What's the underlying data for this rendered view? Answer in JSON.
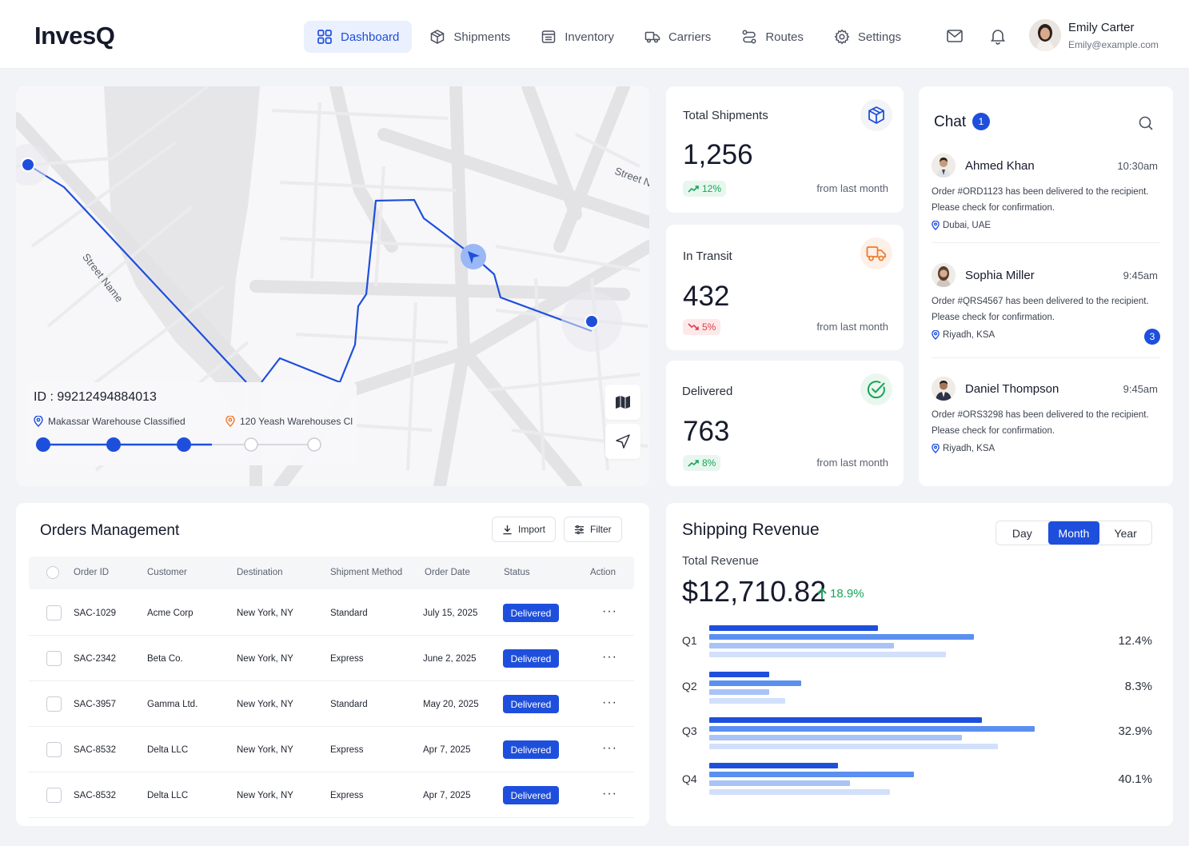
{
  "brand": {
    "logo": "InvesQ",
    "accent": "#1e4fdc"
  },
  "nav": [
    {
      "label": "Dashboard",
      "icon": "grid-icon",
      "active": true
    },
    {
      "label": "Shipments",
      "icon": "box-icon",
      "active": false
    },
    {
      "label": "Inventory",
      "icon": "inventory-icon",
      "active": false
    },
    {
      "label": "Carriers",
      "icon": "truck-icon",
      "active": false
    },
    {
      "label": "Routes",
      "icon": "route-icon",
      "active": false
    },
    {
      "label": "Settings",
      "icon": "gear-icon",
      "active": false
    }
  ],
  "user": {
    "name": "Emily Carter",
    "email": "Emily@example.com"
  },
  "map": {
    "street_label_1": "Street Name",
    "street_label_2": "Street N",
    "tracking": {
      "id": "ID : 99212494884013",
      "from": "Makassar Warehouse Classified",
      "to": "120 Yeash Warehouses Cl",
      "steps_total": 5,
      "steps_complete": 3
    }
  },
  "stats": [
    {
      "label": "Total Shipments",
      "value": "1,256",
      "change": "12%",
      "trend": "up",
      "footnote": "from last month",
      "icon": "box-icon"
    },
    {
      "label": "In Transit",
      "value": "432",
      "change": "5%",
      "trend": "down",
      "footnote": "from last month",
      "icon": "truck-icon"
    },
    {
      "label": "Delivered",
      "value": "763",
      "change": "8%",
      "trend": "up",
      "footnote": "from last month",
      "icon": "check-circle-icon"
    }
  ],
  "chat": {
    "title": "Chat",
    "unread": "1",
    "messages": [
      {
        "name": "Ahmed Khan",
        "time": "10:30am",
        "line1": "Order #ORD1123 has been delivered to the recipient.",
        "line2": "Please check for confirmation.",
        "location": "Dubai, UAE",
        "badge": ""
      },
      {
        "name": "Sophia Miller",
        "time": "9:45am",
        "line1": "Order #QRS4567 has been delivered to the recipient.",
        "line2": "Please check for confirmation.",
        "location": "Riyadh, KSA",
        "badge": "3"
      },
      {
        "name": "Daniel Thompson",
        "time": "9:45am",
        "line1": "Order #ORS3298 has been delivered to the recipient.",
        "line2": "Please check for confirmation.",
        "location": "Riyadh, KSA",
        "badge": ""
      }
    ]
  },
  "orders": {
    "title": "Orders Management",
    "import_label": "Import",
    "filter_label": "Filter",
    "columns": [
      "Order ID",
      "Customer",
      "Destination",
      "Shipment Method",
      "Order Date",
      "Status",
      "Action"
    ],
    "rows": [
      {
        "id": "SAC-1029",
        "customer": "Acme Corp",
        "destination": "New York, NY",
        "method": "Standard",
        "date": "July 15, 2025",
        "status": "Delivered",
        "action": "···"
      },
      {
        "id": "SAC-2342",
        "customer": "Beta Co.",
        "destination": "New York, NY",
        "method": "Express",
        "date": "June 2, 2025",
        "status": "Delivered",
        "action": "···"
      },
      {
        "id": "SAC-3957",
        "customer": "Gamma Ltd.",
        "destination": "New York, NY",
        "method": "Standard",
        "date": "May 20, 2025",
        "status": "Delivered",
        "action": "···"
      },
      {
        "id": "SAC-8532",
        "customer": "Delta LLC",
        "destination": "New York, NY",
        "method": "Express",
        "date": "Apr 7, 2025",
        "status": "Delivered",
        "action": "···"
      },
      {
        "id": "SAC-8532",
        "customer": "Delta LLC",
        "destination": "New York, NY",
        "method": "Express",
        "date": "Apr 7, 2025",
        "status": "Delivered",
        "action": "···"
      }
    ]
  },
  "revenue": {
    "title": "Shipping Revenue",
    "ranges": [
      "Day",
      "Month",
      "Year"
    ],
    "active_range": "Month",
    "subtitle": "Total Revenue",
    "total": "$12,710.82",
    "growth": "18.9%"
  },
  "chart_data": {
    "type": "bar",
    "orientation": "horizontal",
    "categories": [
      "Q1",
      "Q2",
      "Q3",
      "Q4"
    ],
    "value_labels": [
      "12.4%",
      "8.3%",
      "32.9%",
      "40.1%"
    ],
    "series": [
      {
        "color": "#1e4fdc",
        "values": [
          42,
          15,
          68,
          32
        ]
      },
      {
        "color": "#5b8ff0",
        "values": [
          66,
          23,
          81,
          51
        ]
      },
      {
        "color": "#a9c3f7",
        "values": [
          46,
          15,
          63,
          35
        ]
      },
      {
        "color": "#d2e0fb",
        "values": [
          59,
          19,
          72,
          45
        ]
      }
    ],
    "xlim": [
      0,
      100
    ]
  }
}
